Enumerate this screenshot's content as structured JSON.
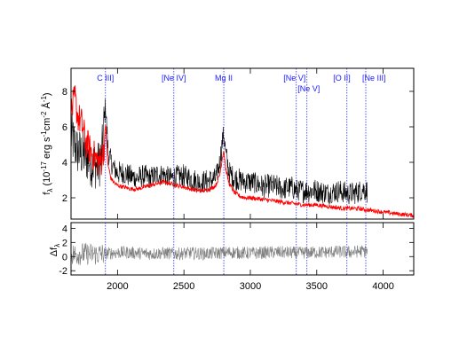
{
  "chart_data": [
    {
      "panel": "top",
      "type": "line",
      "ylabel": "f_λ (10^-17 erg s^-1 cm^-2 Å^-1)",
      "xlim": [
        1650,
        4230
      ],
      "ylim": [
        0.8,
        9.3
      ],
      "yticks": [
        2,
        4,
        6,
        8
      ],
      "grid": false,
      "series": [
        {
          "color": "#000000",
          "x": [
            1650,
            1700,
            1750,
            1800,
            1850,
            1880,
            1900,
            1910,
            1930,
            1960,
            2000,
            2050,
            2100,
            2150,
            2200,
            2250,
            2300,
            2350,
            2400,
            2450,
            2500,
            2550,
            2600,
            2650,
            2700,
            2740,
            2770,
            2790,
            2800,
            2815,
            2840,
            2880,
            2920,
            2960,
            3000,
            3050,
            3100,
            3150,
            3200,
            3250,
            3300,
            3350,
            3400,
            3450,
            3500,
            3550,
            3600,
            3650,
            3700,
            3750,
            3800,
            3850,
            3880
          ],
          "y": [
            5.5,
            4.6,
            4.4,
            4.0,
            3.8,
            4.2,
            6.4,
            7.2,
            4.5,
            3.8,
            3.4,
            3.4,
            3.2,
            3.1,
            3.2,
            3.1,
            3.3,
            3.3,
            3.1,
            3.2,
            3.2,
            3.1,
            2.9,
            2.9,
            3.0,
            3.1,
            4.0,
            5.2,
            5.7,
            4.5,
            3.4,
            3.1,
            3.0,
            2.9,
            2.9,
            2.8,
            2.6,
            2.7,
            2.6,
            2.5,
            2.6,
            2.4,
            2.4,
            2.4,
            2.4,
            2.3,
            2.3,
            2.4,
            2.3,
            2.2,
            2.3,
            2.5,
            2.4
          ]
        },
        {
          "color": "#ff0000",
          "x": [
            1650,
            1680,
            1700,
            1730,
            1760,
            1800,
            1830,
            1860,
            1880,
            1900,
            1910,
            1925,
            1950,
            1980,
            2000,
            2050,
            2100,
            2150,
            2200,
            2250,
            2300,
            2350,
            2400,
            2450,
            2500,
            2550,
            2600,
            2650,
            2700,
            2740,
            2770,
            2790,
            2800,
            2815,
            2840,
            2880,
            2920,
            2960,
            3000,
            3100,
            3200,
            3300,
            3400,
            3500,
            3600,
            3700,
            3800,
            3900,
            4000,
            4100,
            4230
          ],
          "y": [
            6.8,
            7.6,
            6.6,
            6.2,
            5.2,
            4.6,
            4.3,
            4.0,
            4.1,
            5.0,
            6.2,
            4.0,
            3.1,
            2.8,
            2.7,
            2.6,
            2.5,
            2.5,
            2.6,
            2.7,
            2.8,
            2.9,
            2.8,
            2.7,
            2.6,
            2.5,
            2.4,
            2.4,
            2.5,
            2.7,
            3.3,
            4.3,
            4.7,
            3.6,
            2.8,
            2.3,
            2.1,
            2.0,
            2.0,
            1.9,
            1.8,
            1.7,
            1.6,
            1.6,
            1.5,
            1.4,
            1.4,
            1.3,
            1.2,
            1.1,
            1.0
          ]
        }
      ],
      "lines": [
        {
          "label": "C III]",
          "x": 1909
        },
        {
          "label": "[Ne IV]",
          "x": 2424
        },
        {
          "label": "Mg II",
          "x": 2800
        },
        {
          "label": "[Ne V]",
          "x": 3346
        },
        {
          "label": "[Ne V]",
          "x": 3426
        },
        {
          "label": "[O II]",
          "x": 3727
        },
        {
          "label": "[Ne III]",
          "x": 3869
        }
      ]
    },
    {
      "panel": "bottom",
      "type": "line",
      "ylabel": "Δf_λ",
      "xlim": [
        1650,
        4230
      ],
      "ylim": [
        -2.6,
        4.8
      ],
      "yticks": [
        -2,
        0,
        2,
        4
      ],
      "xticks": [
        2000,
        2500,
        3000,
        3500,
        4000
      ],
      "grid": false,
      "series": [
        {
          "color": "#808080",
          "x": [
            1650,
            1750,
            1850,
            1950,
            2050,
            2150,
            2250,
            2350,
            2450,
            2550,
            2650,
            2750,
            2850,
            2950,
            3050,
            3150,
            3250,
            3350,
            3450,
            3550,
            3650,
            3750,
            3850,
            3880
          ],
          "y": [
            0.3,
            0.4,
            0.3,
            0.5,
            0.6,
            0.5,
            0.4,
            0.5,
            0.4,
            0.5,
            0.4,
            0.5,
            0.6,
            0.5,
            0.5,
            0.6,
            0.6,
            0.5,
            0.6,
            0.6,
            0.7,
            0.6,
            0.8,
            0.7
          ]
        }
      ]
    }
  ],
  "axis_text": {
    "top_ylabel_main": "f",
    "top_ylabel_sub": "λ",
    "top_ylabel_rest": " (10",
    "top_ylabel_exp1": "-17",
    "top_ylabel_mid": " erg s",
    "top_ylabel_exp2": "-1",
    "top_ylabel_mid2": "cm",
    "top_ylabel_exp3": "-2",
    "top_ylabel_end": " Å",
    "top_ylabel_exp4": "-1",
    "top_ylabel_close": ")",
    "bottom_ylabel_main": "Δf",
    "bottom_ylabel_sub": "λ"
  }
}
